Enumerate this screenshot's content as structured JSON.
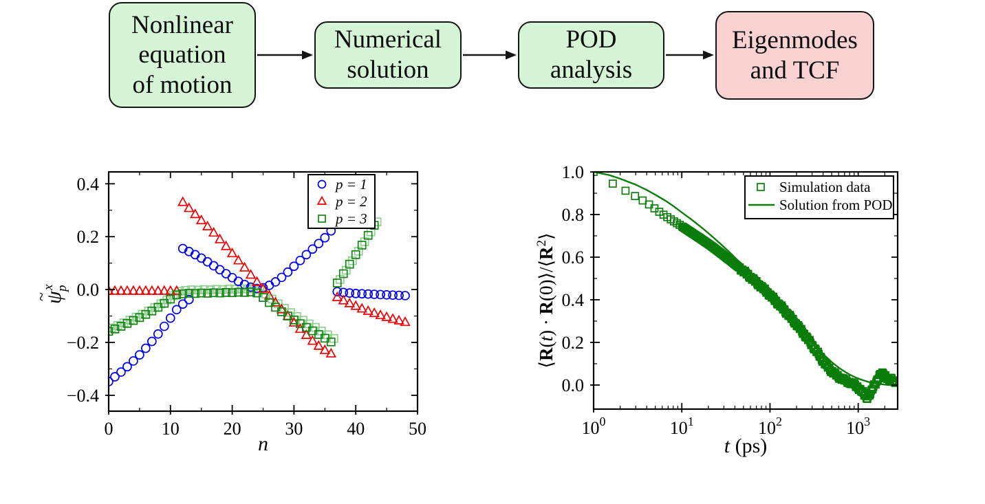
{
  "figure": {
    "background": "#ffffff"
  },
  "flowchart": {
    "arrow_color": "#141414",
    "boxes": [
      {
        "label": "Nonlinear\nequation\nof motion",
        "fill": "#d6f5d6",
        "border": "#141414"
      },
      {
        "label": "Numerical\nsolution",
        "fill": "#d6f5d6",
        "border": "#141414"
      },
      {
        "label": "POD\nanalysis",
        "fill": "#d6f5d6",
        "border": "#141414"
      },
      {
        "label": "Eigenmodes\nand TCF",
        "fill": "#fad2d2",
        "border": "#141414"
      }
    ]
  },
  "chart_data": [
    {
      "type": "scatter",
      "title": "",
      "xlabel": "n",
      "ylabel": {
        "base": "ψ",
        "accent": "~",
        "sup": "x",
        "sub": "p"
      },
      "xlim": [
        0,
        50
      ],
      "ylim": [
        -0.46,
        0.445
      ],
      "xticks": [
        0,
        10,
        20,
        30,
        40,
        50
      ],
      "xminor": [
        5,
        15,
        25,
        35,
        45
      ],
      "yticks": [
        -0.4,
        -0.2,
        0.0,
        0.2,
        0.4
      ],
      "yminor": [
        -0.3,
        -0.1,
        0.1,
        0.3
      ],
      "grid": false,
      "legend_position": "top-right",
      "series": [
        {
          "label": "p = 1",
          "marker": "circle",
          "color": "#0000ee",
          "segments": [
            {
              "n0": 0,
              "values": [
                -0.348,
                -0.33,
                -0.312,
                -0.292,
                -0.27,
                -0.247,
                -0.222,
                -0.196,
                -0.168,
                -0.139,
                -0.108,
                -0.076,
                -0.055,
                -0.038
              ]
            },
            {
              "n0": 12,
              "values": [
                0.155,
                0.144,
                0.132,
                0.119,
                0.105,
                0.09,
                0.075,
                0.06,
                0.045,
                0.031,
                0.019,
                0.009,
                0.004,
                0.007,
                0.016,
                0.029,
                0.046,
                0.066,
                0.088,
                0.11,
                0.132,
                0.153,
                0.174,
                0.196,
                0.222
              ]
            },
            {
              "n0": 37,
              "values": [
                -0.008,
                -0.011,
                -0.013,
                -0.015,
                -0.016,
                -0.017,
                -0.018,
                -0.019,
                -0.02,
                -0.021,
                -0.022,
                -0.023
              ]
            }
          ]
        },
        {
          "label": "p = 2",
          "marker": "triangle",
          "color": "#ee0000",
          "segments": [
            {
              "n0": 0,
              "values": [
                -0.006,
                -0.006,
                -0.006,
                -0.006,
                -0.006,
                -0.006,
                -0.006,
                -0.006,
                -0.006,
                -0.006,
                -0.006,
                -0.006
              ]
            },
            {
              "n0": 12,
              "values": [
                0.33,
                0.307,
                0.284,
                0.261,
                0.238,
                0.214,
                0.189,
                0.163,
                0.136,
                0.109,
                0.082,
                0.055,
                0.028,
                0.002,
                -0.024,
                -0.05,
                -0.076,
                -0.101,
                -0.126,
                -0.15,
                -0.173,
                -0.195,
                -0.214,
                -0.23,
                -0.243
              ]
            },
            {
              "n0": 37,
              "values": [
                -0.03,
                -0.042,
                -0.053,
                -0.063,
                -0.073,
                -0.082,
                -0.09,
                -0.098,
                -0.105,
                -0.112,
                -0.118,
                -0.124
              ]
            }
          ]
        },
        {
          "label": "p = 3",
          "marker": "square",
          "color": "#128312",
          "echo": {
            "dn": 0.45,
            "dv": 0.013,
            "color": "#8fd08f"
          },
          "segments": [
            {
              "n0": 0,
              "values": [
                -0.158,
                -0.149,
                -0.139,
                -0.128,
                -0.117,
                -0.106,
                -0.094,
                -0.081,
                -0.067,
                -0.052,
                -0.036,
                -0.02
              ]
            },
            {
              "n0": 12,
              "values": [
                -0.016,
                -0.014,
                -0.015,
                -0.013,
                -0.014,
                -0.012,
                -0.013,
                -0.011,
                -0.012,
                -0.01,
                -0.011,
                -0.009,
                -0.013,
                -0.03,
                -0.049,
                -0.067,
                -0.084,
                -0.1,
                -0.115,
                -0.129,
                -0.143,
                -0.156,
                -0.17,
                -0.184,
                -0.198
              ]
            },
            {
              "n0": 37,
              "values": [
                0.025,
                0.06,
                0.096,
                0.132,
                0.168,
                0.205,
                0.243
              ]
            }
          ]
        }
      ]
    },
    {
      "type": "line-scatter",
      "title": "",
      "xscale": "log",
      "xlabel_parts": [
        {
          "t": "t",
          "i": 1
        },
        {
          "t": " (ps)"
        }
      ],
      "ylabel_parts": [
        {
          "t": "⟨"
        },
        {
          "t": "R",
          "b": 1
        },
        {
          "t": "("
        },
        {
          "t": "t",
          "i": 1
        },
        {
          "t": ") · "
        },
        {
          "t": "R",
          "b": 1
        },
        {
          "t": "(0)⟩/⟨"
        },
        {
          "t": "R",
          "b": 1
        },
        {
          "t": "2",
          "sup": 1
        },
        {
          "t": "⟩"
        }
      ],
      "xlim": [
        1,
        2800
      ],
      "ylim": [
        -0.113,
        1.0
      ],
      "xticks_exponents": [
        0,
        1,
        2,
        3
      ],
      "yticks": [
        0.0,
        0.2,
        0.4,
        0.6,
        0.8,
        1.0
      ],
      "yminor": [
        0.1,
        0.3,
        0.5,
        0.7,
        0.9
      ],
      "grid": false,
      "legend_position": "top-right",
      "series": [
        {
          "label": "Simulation data",
          "marker": "square",
          "color": "#0b7d0b",
          "points": [
            [
              1,
              1.0
            ],
            [
              1.4,
              0.962
            ],
            [
              2,
              0.925
            ],
            [
              2.6,
              0.9
            ],
            [
              3.3,
              0.875
            ],
            [
              4,
              0.855
            ],
            [
              4.6,
              0.837
            ],
            [
              6,
              0.803
            ],
            [
              8,
              0.77
            ],
            [
              10,
              0.745
            ],
            [
              13,
              0.714
            ],
            [
              17,
              0.682
            ],
            [
              22,
              0.65
            ],
            [
              28,
              0.617
            ],
            [
              36,
              0.582
            ],
            [
              46,
              0.547
            ],
            [
              58,
              0.512
            ],
            [
              73,
              0.475
            ],
            [
              92,
              0.437
            ],
            [
              115,
              0.396
            ],
            [
              145,
              0.352
            ],
            [
              180,
              0.307
            ],
            [
              225,
              0.258
            ],
            [
              280,
              0.205
            ],
            [
              350,
              0.148
            ],
            [
              420,
              0.1
            ],
            [
              500,
              0.065
            ],
            [
              580,
              0.042
            ],
            [
              670,
              0.027
            ],
            [
              770,
              0.015
            ],
            [
              880,
              0.005
            ],
            [
              1000,
              -0.012
            ],
            [
              1120,
              -0.035
            ],
            [
              1250,
              -0.06
            ],
            [
              1380,
              -0.04
            ],
            [
              1500,
              -0.005
            ],
            [
              1650,
              0.025
            ],
            [
              1800,
              0.05
            ],
            [
              1950,
              0.055
            ],
            [
              2100,
              0.035
            ],
            [
              2250,
              0.022
            ],
            [
              2400,
              0.03
            ],
            [
              2550,
              0.018
            ],
            [
              2745,
              0.015
            ]
          ]
        },
        {
          "label": "Solution from POD",
          "type": "line",
          "color": "#0b7d0b",
          "points": [
            [
              1,
              1.0
            ],
            [
              1.5,
              0.985
            ],
            [
              2,
              0.968
            ],
            [
              3,
              0.94
            ],
            [
              4,
              0.915
            ],
            [
              5,
              0.893
            ],
            [
              6.5,
              0.865
            ],
            [
              8,
              0.84
            ],
            [
              10,
              0.81
            ],
            [
              13,
              0.775
            ],
            [
              17,
              0.737
            ],
            [
              22,
              0.698
            ],
            [
              28,
              0.659
            ],
            [
              36,
              0.617
            ],
            [
              46,
              0.573
            ],
            [
              58,
              0.53
            ],
            [
              73,
              0.485
            ],
            [
              92,
              0.44
            ],
            [
              115,
              0.394
            ],
            [
              145,
              0.347
            ],
            [
              180,
              0.303
            ],
            [
              225,
              0.258
            ],
            [
              280,
              0.213
            ],
            [
              350,
              0.17
            ],
            [
              420,
              0.137
            ],
            [
              500,
              0.108
            ],
            [
              600,
              0.082
            ],
            [
              700,
              0.063
            ],
            [
              800,
              0.049
            ],
            [
              950,
              0.034
            ],
            [
              1100,
              0.024
            ],
            [
              1300,
              0.015
            ],
            [
              1500,
              0.009
            ],
            [
              1800,
              0.004
            ],
            [
              2100,
              0.001
            ],
            [
              2400,
              0.0
            ],
            [
              2745,
              0.0
            ]
          ]
        }
      ]
    }
  ]
}
